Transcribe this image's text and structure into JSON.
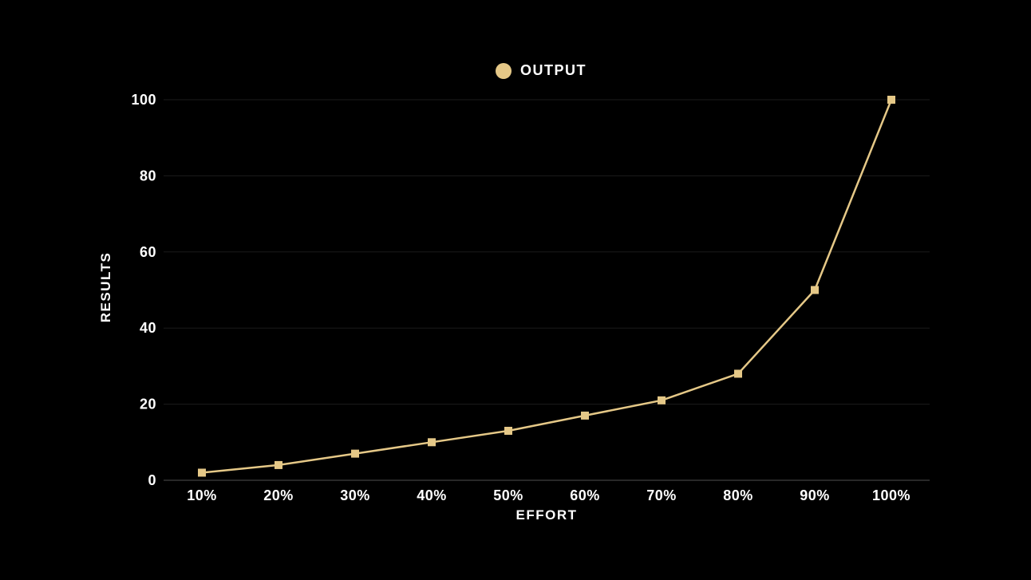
{
  "chart_data": {
    "type": "line",
    "title": "",
    "series": [
      {
        "name": "OUTPUT",
        "values": [
          2,
          4,
          7,
          10,
          13,
          17,
          21,
          28,
          50,
          100
        ]
      }
    ],
    "categories": [
      "10%",
      "20%",
      "30%",
      "40%",
      "50%",
      "60%",
      "70%",
      "80%",
      "90%",
      "100%"
    ],
    "xlabel": "EFFORT",
    "ylabel": "RESULTS",
    "ylim": [
      0,
      100
    ],
    "yticks": [
      0,
      20,
      40,
      60,
      80,
      100
    ],
    "grid": true,
    "legend_position": "top-center",
    "legend_label": "OUTPUT",
    "colors": {
      "background": "#000000",
      "line": "#E5C887",
      "marker": "#E5C887",
      "text": "#FFFFFF",
      "gridline": "#1B1B1B",
      "axis_line": "#4F4F4F"
    }
  }
}
